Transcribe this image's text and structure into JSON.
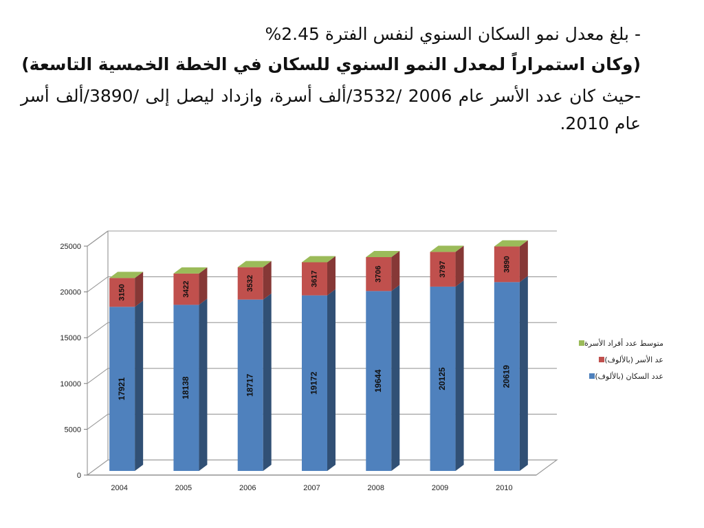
{
  "text": {
    "line1": "- بلغ معدل نمو السكان السنوي لنفس الفترة 2.45%",
    "line2": "(وكان استمراراً لمعدل النمو السنوي للسكان في الخطة الخمسية التاسعة)",
    "line3": "-حيث كان عدد الأسر عام 2006 /3532/ألف أسرة، وازداد ليصل إلى /3890/ألف أسر عام 2010."
  },
  "chart_data": {
    "type": "bar",
    "stacked": true,
    "categories": [
      "2004",
      "2005",
      "2006",
      "2007",
      "2008",
      "2009",
      "2010"
    ],
    "series": [
      {
        "name": "عدد السكان (بالألوف)",
        "values": [
          17921,
          18138,
          18717,
          19172,
          19644,
          20125,
          20619
        ],
        "color": "#4f81bd"
      },
      {
        "name": "عد الأسر (بالألوف)",
        "values": [
          3150,
          3422,
          3532,
          3617,
          3706,
          3797,
          3890
        ],
        "color": "#c0504d"
      },
      {
        "name": "متوسط عدد أفراد الأسرة",
        "values": [
          null,
          null,
          null,
          null,
          null,
          null,
          null
        ],
        "color": "#9bbb59"
      }
    ],
    "ylim": [
      0,
      25000
    ],
    "yticks": [
      0,
      5000,
      10000,
      15000,
      20000,
      25000
    ],
    "grid": true,
    "legend": "right",
    "three_d": true
  }
}
